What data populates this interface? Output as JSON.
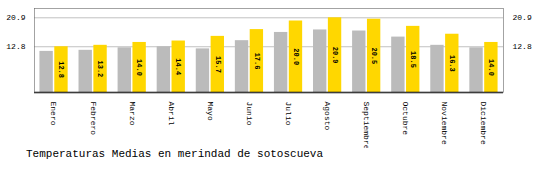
{
  "chart_data": {
    "type": "bar",
    "title": "Temperaturas Medias en merindad de sotoscueva",
    "categories": [
      "Enero",
      "Febrero",
      "Marzo",
      "Abril",
      "Mayo",
      "Junio",
      "Julio",
      "Agosto",
      "Septiembre",
      "Octubre",
      "Noviembre",
      "Diciembre"
    ],
    "series": [
      {
        "color": "#BBBBBB",
        "values": [
          11.5,
          11.8,
          12.5,
          12.8,
          12.2,
          14.5,
          16.8,
          17.5,
          17.2,
          15.5,
          13.2,
          12.5
        ]
      },
      {
        "color": "#FFD700",
        "values": [
          12.8,
          13.2,
          14.0,
          14.4,
          15.7,
          17.6,
          20.0,
          20.9,
          20.5,
          18.5,
          16.3,
          14.0
        ],
        "data_labels": true,
        "value_labels": [
          "12.8",
          "13.2",
          "14.0",
          "14.4",
          "15.7",
          "17.6",
          "20.0",
          "20.9",
          "20.5",
          "18.5",
          "16.3",
          "14.0"
        ]
      }
    ],
    "ylim": [
      0,
      23.5
    ],
    "yticks": [
      12.8,
      20.9
    ],
    "grid": true
  }
}
